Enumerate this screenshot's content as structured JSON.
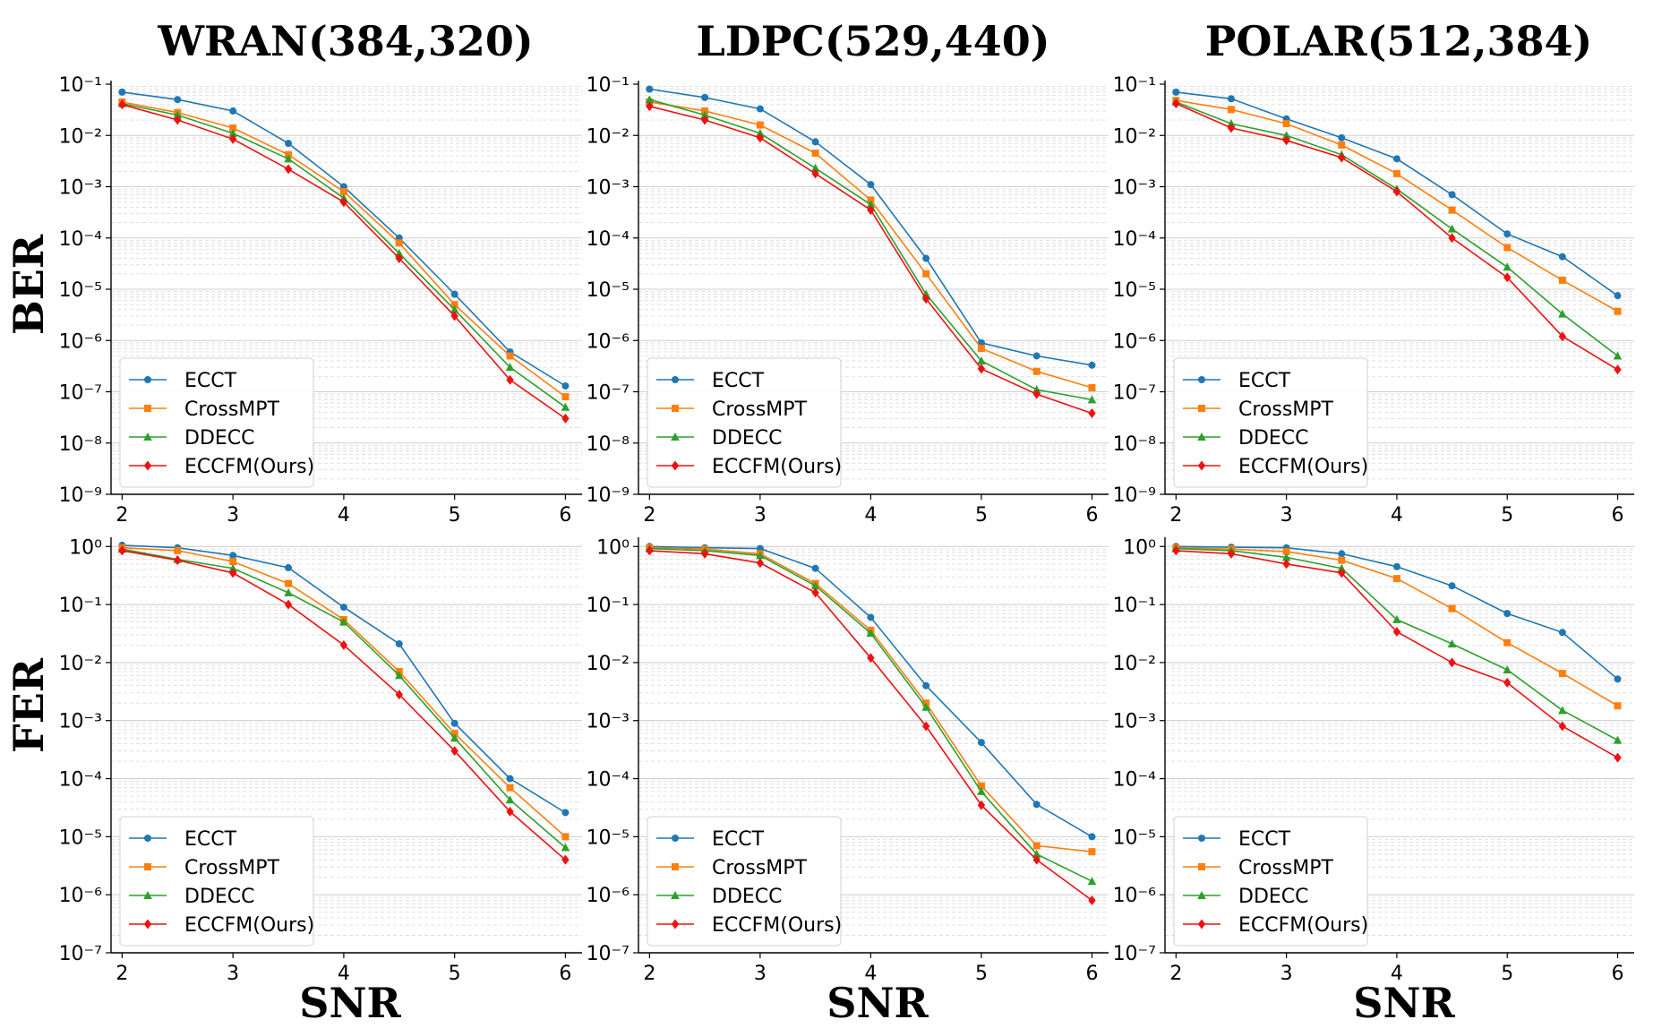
{
  "figure": {
    "column_titles": [
      "WRAN(384,320)",
      "LDPC(529,440)",
      "POLAR(512,384)"
    ],
    "row_labels": [
      "BER",
      "FER"
    ],
    "x_title": "SNR"
  },
  "series_styles": [
    {
      "name": "ECCT",
      "color": "#1f77b4",
      "marker": "circle"
    },
    {
      "name": "CrossMPT",
      "color": "#ff7f0e",
      "marker": "square"
    },
    {
      "name": "DDECC",
      "color": "#2ca02c",
      "marker": "triangle"
    },
    {
      "name": "ECCFM(Ours)",
      "color": "#ee1111",
      "marker": "diamond"
    }
  ],
  "chart_data": [
    {
      "type": "line",
      "title": "WRAN(384,320)",
      "ylabel": "BER",
      "xlabel": "",
      "yscale": "log",
      "ylim": [
        1e-09,
        0.1
      ],
      "xlim": [
        1.9,
        6.15
      ],
      "x": [
        2,
        2.5,
        3,
        3.5,
        4,
        4.5,
        5,
        5.5,
        6
      ],
      "xticks": [
        "2",
        "3",
        "4",
        "5",
        "6"
      ],
      "ytick_exponents": [
        -9,
        -8,
        -7,
        -6,
        -5,
        -4,
        -3,
        -2,
        -1
      ],
      "grid": true,
      "legend_position": "lower-left",
      "series": [
        {
          "name": "ECCT",
          "values": [
            0.07,
            0.05,
            0.03,
            0.007,
            0.001,
            0.0001,
            8e-06,
            6e-07,
            1.3e-07
          ]
        },
        {
          "name": "CrossMPT",
          "values": [
            0.045,
            0.028,
            0.014,
            0.0042,
            0.0008,
            8e-05,
            5e-06,
            5e-07,
            8e-08
          ]
        },
        {
          "name": "DDECC",
          "values": [
            0.042,
            0.025,
            0.011,
            0.0035,
            0.0006,
            5e-05,
            4e-06,
            3e-07,
            5e-08
          ]
        },
        {
          "name": "ECCFM(Ours)",
          "values": [
            0.04,
            0.02,
            0.0085,
            0.0022,
            0.0005,
            4e-05,
            3e-06,
            1.7e-07,
            3e-08
          ]
        }
      ]
    },
    {
      "type": "line",
      "title": "LDPC(529,440)",
      "ylabel": "BER",
      "xlabel": "",
      "yscale": "log",
      "ylim": [
        1e-09,
        0.1
      ],
      "xlim": [
        1.9,
        6.15
      ],
      "x": [
        2,
        2.5,
        3,
        3.5,
        4,
        4.5,
        5,
        5.5,
        6
      ],
      "xticks": [
        "2",
        "3",
        "4",
        "5",
        "6"
      ],
      "ytick_exponents": [
        -9,
        -8,
        -7,
        -6,
        -5,
        -4,
        -3,
        -2,
        -1
      ],
      "grid": true,
      "legend_position": "lower-left",
      "series": [
        {
          "name": "ECCT",
          "values": [
            0.08,
            0.055,
            0.033,
            0.0075,
            0.0011,
            4e-05,
            9e-07,
            5e-07,
            3.3e-07
          ]
        },
        {
          "name": "CrossMPT",
          "values": [
            0.045,
            0.03,
            0.016,
            0.0045,
            0.00055,
            2e-05,
            7e-07,
            2.5e-07,
            1.2e-07
          ]
        },
        {
          "name": "DDECC",
          "values": [
            0.05,
            0.025,
            0.011,
            0.0023,
            0.00045,
            8e-06,
            4e-07,
            1.1e-07,
            7e-08
          ]
        },
        {
          "name": "ECCFM(Ours)",
          "values": [
            0.037,
            0.02,
            0.009,
            0.0018,
            0.00035,
            6.5e-06,
            2.8e-07,
            9e-08,
            3.8e-08
          ]
        }
      ]
    },
    {
      "type": "line",
      "title": "POLAR(512,384)",
      "ylabel": "BER",
      "xlabel": "",
      "yscale": "log",
      "ylim": [
        1e-09,
        0.1
      ],
      "xlim": [
        1.9,
        6.15
      ],
      "x": [
        2,
        2.5,
        3,
        3.5,
        4,
        4.5,
        5,
        5.5,
        6
      ],
      "xticks": [
        "2",
        "3",
        "4",
        "5",
        "6"
      ],
      "ytick_exponents": [
        -9,
        -8,
        -7,
        -6,
        -5,
        -4,
        -3,
        -2,
        -1
      ],
      "grid": true,
      "legend_position": "lower-left",
      "series": [
        {
          "name": "ECCT",
          "values": [
            0.07,
            0.052,
            0.021,
            0.009,
            0.0035,
            0.0007,
            0.00012,
            4.3e-05,
            7.5e-06
          ]
        },
        {
          "name": "CrossMPT",
          "values": [
            0.048,
            0.032,
            0.017,
            0.0065,
            0.0018,
            0.00035,
            6.5e-05,
            1.5e-05,
            3.7e-06
          ]
        },
        {
          "name": "DDECC",
          "values": [
            0.045,
            0.017,
            0.01,
            0.0042,
            0.0009,
            0.00015,
            2.7e-05,
            3.3e-06,
            5e-07
          ]
        },
        {
          "name": "ECCFM(Ours)",
          "values": [
            0.042,
            0.014,
            0.008,
            0.0037,
            0.0008,
            0.0001,
            1.7e-05,
            1.2e-06,
            2.7e-07
          ]
        }
      ]
    },
    {
      "type": "line",
      "title": "",
      "ylabel": "FER",
      "xlabel": "SNR",
      "yscale": "log",
      "ylim": [
        1e-07,
        1.25
      ],
      "xlim": [
        1.9,
        6.15
      ],
      "x": [
        2,
        2.5,
        3,
        3.5,
        4,
        4.5,
        5,
        5.5,
        6
      ],
      "xticks": [
        "2",
        "3",
        "4",
        "5",
        "6"
      ],
      "ytick_exponents": [
        -7,
        -6,
        -5,
        -4,
        -3,
        -2,
        -1,
        0
      ],
      "grid": true,
      "legend_position": "lower-left",
      "series": [
        {
          "name": "ECCT",
          "values": [
            1.05,
            0.95,
            0.7,
            0.43,
            0.09,
            0.021,
            0.0009,
            0.0001,
            2.6e-05
          ]
        },
        {
          "name": "CrossMPT",
          "values": [
            0.95,
            0.85,
            0.55,
            0.23,
            0.055,
            0.007,
            0.0006,
            7e-05,
            1e-05
          ]
        },
        {
          "name": "DDECC",
          "values": [
            0.9,
            0.6,
            0.42,
            0.16,
            0.05,
            0.006,
            0.0005,
            4.3e-05,
            6.5e-06
          ]
        },
        {
          "name": "ECCFM(Ours)",
          "values": [
            0.85,
            0.58,
            0.35,
            0.1,
            0.02,
            0.0028,
            0.0003,
            2.7e-05,
            4e-06
          ]
        }
      ]
    },
    {
      "type": "line",
      "title": "",
      "ylabel": "FER",
      "xlabel": "SNR",
      "yscale": "log",
      "ylim": [
        1e-07,
        1.25
      ],
      "xlim": [
        1.9,
        6.15
      ],
      "x": [
        2,
        2.5,
        3,
        3.5,
        4,
        4.5,
        5,
        5.5,
        6
      ],
      "xticks": [
        "2",
        "3",
        "4",
        "5",
        "6"
      ],
      "ytick_exponents": [
        -7,
        -6,
        -5,
        -4,
        -3,
        -2,
        -1,
        0
      ],
      "grid": true,
      "legend_position": "lower-left",
      "series": [
        {
          "name": "ECCT",
          "values": [
            1.0,
            0.95,
            0.92,
            0.42,
            0.06,
            0.004,
            0.00042,
            3.6e-05,
            1e-05
          ]
        },
        {
          "name": "CrossMPT",
          "values": [
            0.95,
            0.9,
            0.75,
            0.23,
            0.036,
            0.002,
            7.5e-05,
            7e-06,
            5.5e-06
          ]
        },
        {
          "name": "DDECC",
          "values": [
            0.92,
            0.85,
            0.7,
            0.21,
            0.032,
            0.0017,
            6e-05,
            5e-06,
            1.7e-06
          ]
        },
        {
          "name": "ECCFM(Ours)",
          "values": [
            0.85,
            0.75,
            0.52,
            0.16,
            0.012,
            0.0008,
            3.5e-05,
            4e-06,
            8e-07
          ]
        }
      ]
    },
    {
      "type": "line",
      "title": "",
      "ylabel": "FER",
      "xlabel": "SNR",
      "yscale": "log",
      "ylim": [
        1e-07,
        1.25
      ],
      "xlim": [
        1.9,
        6.15
      ],
      "x": [
        2,
        2.5,
        3,
        3.5,
        4,
        4.5,
        5,
        5.5,
        6
      ],
      "xticks": [
        "2",
        "3",
        "4",
        "5",
        "6"
      ],
      "ytick_exponents": [
        -7,
        -6,
        -5,
        -4,
        -3,
        -2,
        -1,
        0
      ],
      "grid": true,
      "legend_position": "lower-left",
      "series": [
        {
          "name": "ECCT",
          "values": [
            1.0,
            0.97,
            0.95,
            0.75,
            0.45,
            0.21,
            0.07,
            0.033,
            0.0052
          ]
        },
        {
          "name": "CrossMPT",
          "values": [
            0.95,
            0.9,
            0.82,
            0.58,
            0.28,
            0.085,
            0.022,
            0.0065,
            0.0018
          ]
        },
        {
          "name": "DDECC",
          "values": [
            0.92,
            0.85,
            0.65,
            0.42,
            0.055,
            0.021,
            0.0075,
            0.0015,
            0.00046
          ]
        },
        {
          "name": "ECCFM(Ours)",
          "values": [
            0.85,
            0.75,
            0.5,
            0.35,
            0.034,
            0.01,
            0.0045,
            0.0008,
            0.00023
          ]
        }
      ]
    }
  ]
}
